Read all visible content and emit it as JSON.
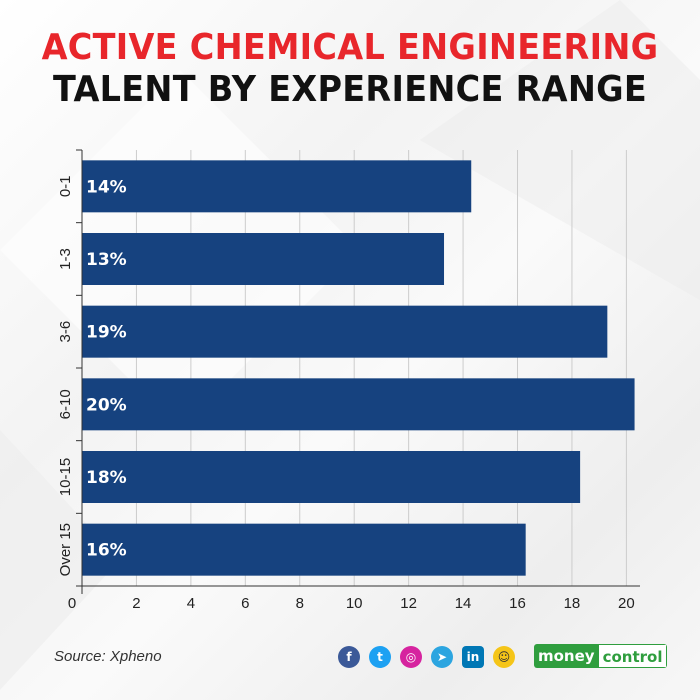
{
  "title_line1": "ACTIVE CHEMICAL ENGINEERING",
  "title_line2": "TALENT BY EXPERIENCE RANGE",
  "source": "Source: Xpheno",
  "brand": {
    "part1": "money",
    "part2": "control"
  },
  "social_icons": [
    "facebook-icon",
    "twitter-icon",
    "instagram-icon",
    "telegram-icon",
    "linkedin-icon",
    "koo-icon"
  ],
  "colors": {
    "title_accent": "#e8262b",
    "bar": "#16427f",
    "grid": "#cccccc"
  },
  "chart_data": {
    "type": "bar",
    "orientation": "horizontal",
    "categories": [
      "0-1",
      "1-3",
      "3-6",
      "6-10",
      "10-15",
      "Over 15"
    ],
    "values": [
      14.3,
      13.3,
      19.3,
      20.3,
      18.3,
      16.3
    ],
    "value_labels": [
      "14%",
      "13%",
      "19%",
      "20%",
      "18%",
      "16%"
    ],
    "xlim": [
      0,
      20.5
    ],
    "x_ticks": [
      0,
      2,
      4,
      6,
      8,
      10,
      12,
      14,
      16,
      18,
      20
    ],
    "grid": true
  }
}
